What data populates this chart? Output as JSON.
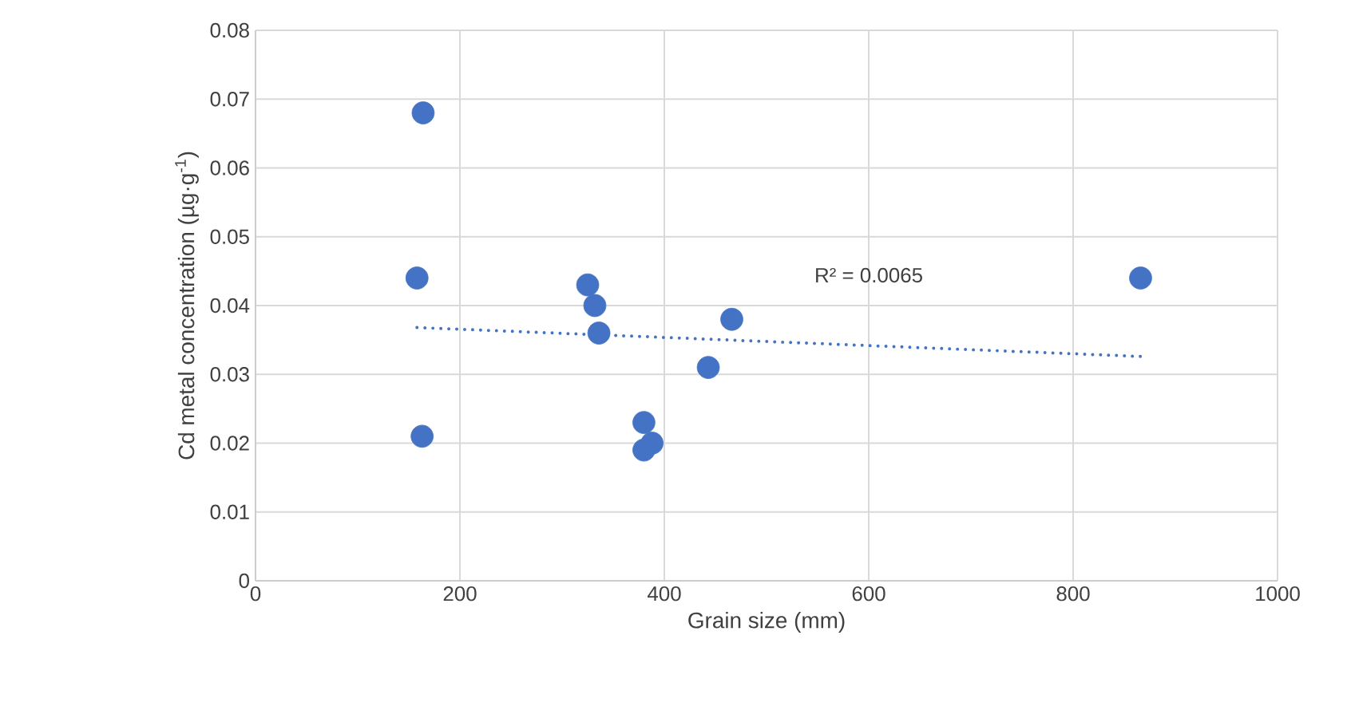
{
  "chart_data": {
    "type": "scatter",
    "xlabel": "Grain size (mm)",
    "ylabel": "Cd metal concentration (µg·g$^{-1}$)",
    "xlim": [
      0,
      1000
    ],
    "xticks": [
      0,
      200,
      400,
      600,
      800,
      1000
    ],
    "ylim": [
      0,
      0.08
    ],
    "yticks": [
      0,
      0.01,
      0.02,
      0.03,
      0.04,
      0.05,
      0.06,
      0.07,
      0.08
    ],
    "grid": true,
    "marker": "circle",
    "series": [
      {
        "color": "#4472c4",
        "x": [
          164,
          158,
          163,
          325,
          332,
          336,
          466,
          443,
          380,
          388,
          380,
          866
        ],
        "values": [
          0.068,
          0.044,
          0.021,
          0.043,
          0.04,
          0.036,
          0.038,
          0.031,
          0.023,
          0.02,
          0.019,
          0.044
        ]
      },
      {
        "type": "line",
        "line_style": "dotted",
        "marker": "none",
        "color": "#4472c4",
        "x": [
          158,
          866
        ],
        "values": [
          0.0368,
          0.0326
        ]
      }
    ],
    "annotations": [
      "R² = 0.0065"
    ]
  }
}
